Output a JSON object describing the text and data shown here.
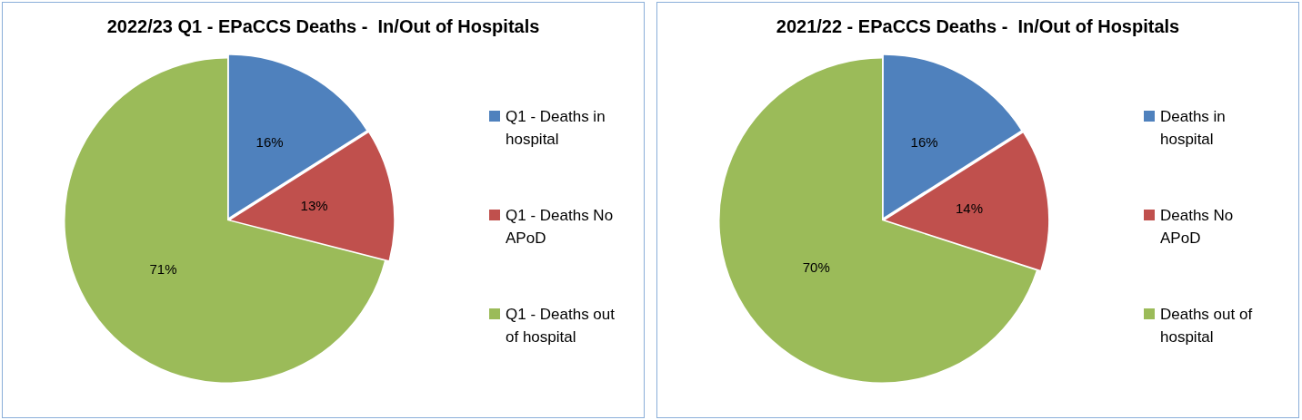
{
  "chart_data": [
    {
      "type": "pie",
      "title": "2022/23 Q1 - EPaCCS Deaths -  In/Out of Hospitals",
      "categories": [
        "Q1 - Deaths in hospital",
        "Q1 - Deaths No APoD",
        "Q1 - Deaths out of hospital"
      ],
      "values": [
        16,
        13,
        71
      ],
      "colors": [
        "#4f81bd",
        "#c0504d",
        "#9bbb59"
      ],
      "value_labels": [
        "16%",
        "13%",
        "71%"
      ],
      "legend": "right"
    },
    {
      "type": "pie",
      "title": "2021/22 - EPaCCS Deaths -  In/Out of Hospitals",
      "categories": [
        "Deaths in hospital",
        "Deaths No APoD",
        "Deaths out of hospital"
      ],
      "values": [
        16,
        14,
        70
      ],
      "colors": [
        "#4f81bd",
        "#c0504d",
        "#9bbb59"
      ],
      "value_labels": [
        "16%",
        "14%",
        "70%"
      ],
      "legend": "right"
    }
  ]
}
